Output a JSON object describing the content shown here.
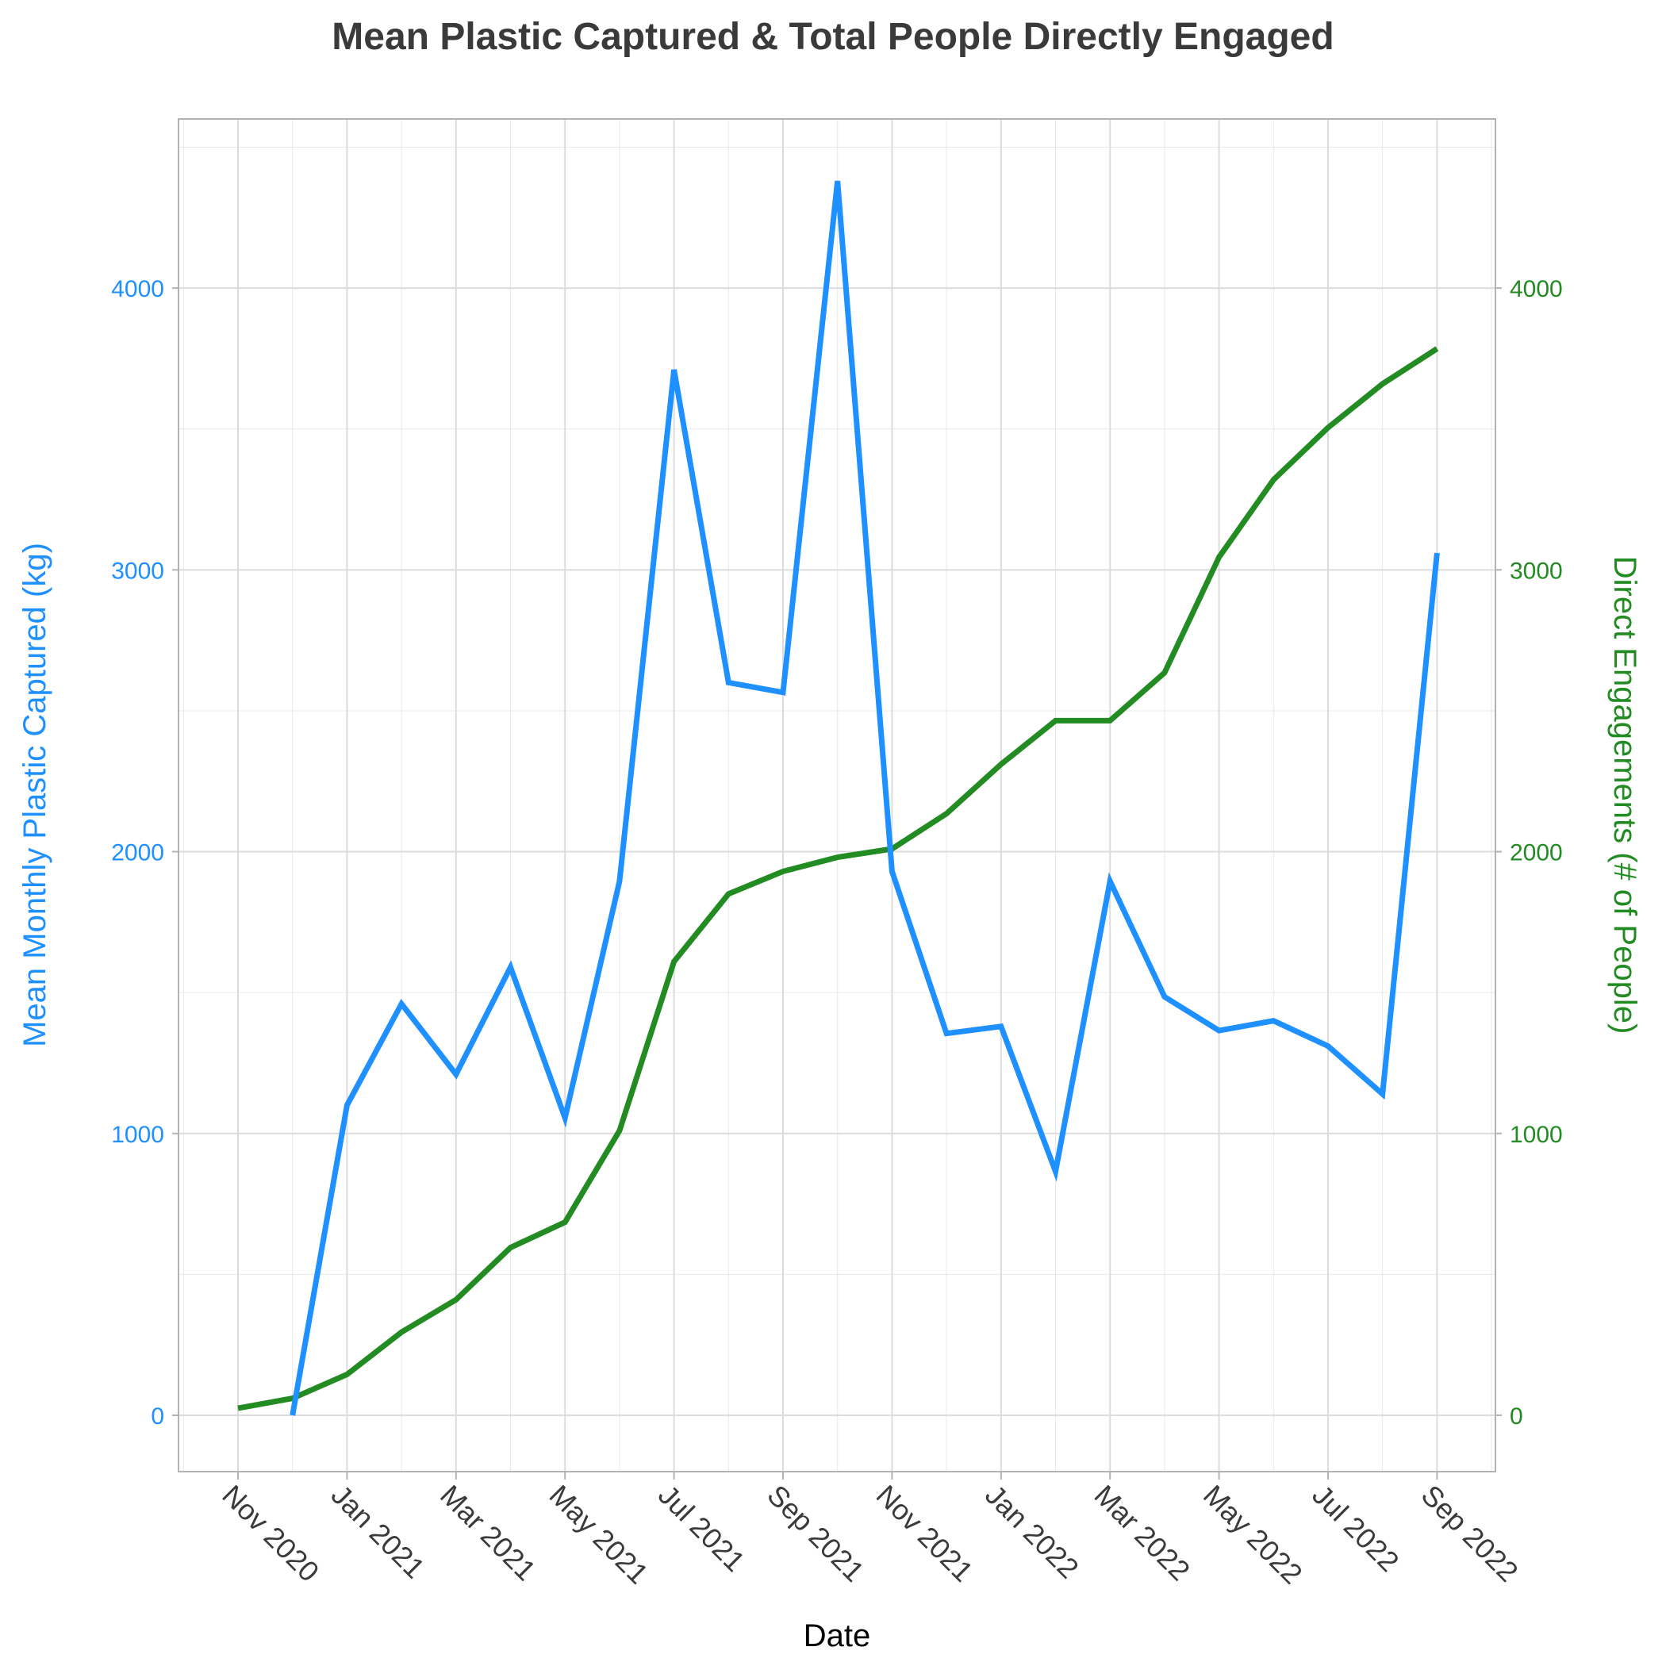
{
  "chart_data": {
    "type": "line",
    "title": "Mean Plastic Captured & Total People Directly Engaged",
    "xlabel": "Date",
    "ylabel_left": "Mean Monthly Plastic Captured (kg)",
    "ylabel_right": "Direct Engagements (# of People)",
    "x_ticks": [
      "Nov 2020",
      "Jan 2021",
      "Mar 2021",
      "May 2021",
      "Jul 2021",
      "Sep 2021",
      "Nov 2021",
      "Jan 2022",
      "Mar 2022",
      "May 2022",
      "Jul 2022",
      "Sep 2022"
    ],
    "left_ticks": [
      "0",
      "1000",
      "2000",
      "3000",
      "4000"
    ],
    "right_ticks": [
      "0",
      "1000",
      "2000",
      "3000",
      "4000"
    ],
    "ylim_left": [
      -200,
      4600
    ],
    "ylim_right": [
      -200,
      4600
    ],
    "grid": true,
    "colors": {
      "plastic": "#1e90ff",
      "engagements": "#228b22",
      "grid": "#dcdcdc",
      "frame": "#b3b3b3"
    },
    "series": [
      {
        "axis": "left",
        "x": [
          "2020-12",
          "2021-01",
          "2021-02",
          "2021-03",
          "2021-04",
          "2021-05",
          "2021-06",
          "2021-07",
          "2021-08",
          "2021-09",
          "2021-10",
          "2021-11",
          "2021-12",
          "2022-01",
          "2022-02",
          "2022-03",
          "2022-04",
          "2022-05",
          "2022-06",
          "2022-07",
          "2022-08",
          "2022-09"
        ],
        "values": [
          0,
          1100,
          1460,
          1210,
          1590,
          1055,
          1895,
          3710,
          2600,
          2565,
          4380,
          1930,
          1355,
          1380,
          865,
          1895,
          1485,
          1365,
          1400,
          1310,
          1140,
          3060
        ]
      },
      {
        "axis": "right",
        "x": [
          "2020-11",
          "2020-12",
          "2021-01",
          "2021-02",
          "2021-03",
          "2021-04",
          "2021-05",
          "2021-06",
          "2021-07",
          "2021-08",
          "2021-09",
          "2021-10",
          "2021-11",
          "2021-12",
          "2022-01",
          "2022-02",
          "2022-03",
          "2022-04",
          "2022-05",
          "2022-06",
          "2022-07",
          "2022-08",
          "2022-09"
        ],
        "values": [
          25,
          60,
          145,
          295,
          410,
          595,
          685,
          1010,
          1610,
          1850,
          1930,
          1980,
          2010,
          2135,
          2310,
          2465,
          2465,
          2635,
          3045,
          3320,
          3505,
          3660,
          3785
        ]
      }
    ]
  }
}
